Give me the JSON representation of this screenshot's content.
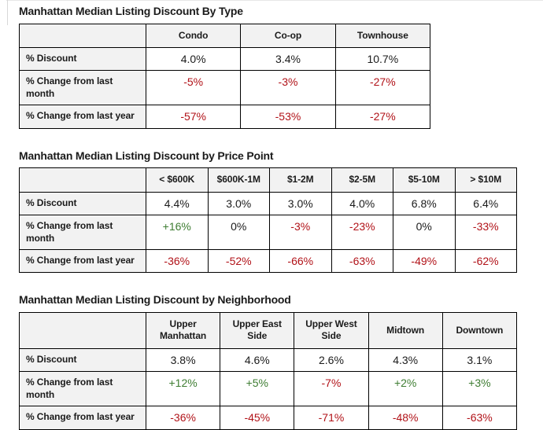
{
  "colors": {
    "negative_value": "#b11218",
    "positive_value": "#3e7d32",
    "neutral_value": "#1b1b1b",
    "header_cell_bg": "#f2f2f2",
    "table_border": "#000000",
    "page_bg": "#ffffff"
  },
  "chart_data": [
    {
      "type": "table",
      "title": "Manhattan Median Listing Discount By Type",
      "columns": [
        "Condo",
        "Co-op",
        "Townhouse"
      ],
      "rows": [
        {
          "label": "% Discount",
          "values": [
            {
              "text": "4.0%",
              "tone": "neutral"
            },
            {
              "text": "3.4%",
              "tone": "neutral"
            },
            {
              "text": "10.7%",
              "tone": "neutral"
            }
          ]
        },
        {
          "label": "% Change from last month",
          "values": [
            {
              "text": "-5%",
              "tone": "negative"
            },
            {
              "text": "-3%",
              "tone": "negative"
            },
            {
              "text": "-27%",
              "tone": "negative"
            }
          ]
        },
        {
          "label": "% Change from last year",
          "values": [
            {
              "text": "-57%",
              "tone": "negative"
            },
            {
              "text": "-53%",
              "tone": "negative"
            },
            {
              "text": "-27%",
              "tone": "negative"
            }
          ]
        }
      ]
    },
    {
      "type": "table",
      "title": "Manhattan Median Listing Discount by Price Point",
      "columns": [
        "< $600K",
        "$600K-1M",
        "$1-2M",
        "$2-5M",
        "$5-10M",
        "> $10M"
      ],
      "rows": [
        {
          "label": "% Discount",
          "values": [
            {
              "text": "4.4%",
              "tone": "neutral"
            },
            {
              "text": "3.0%",
              "tone": "neutral"
            },
            {
              "text": "3.0%",
              "tone": "neutral"
            },
            {
              "text": "4.0%",
              "tone": "neutral"
            },
            {
              "text": "6.8%",
              "tone": "neutral"
            },
            {
              "text": "6.4%",
              "tone": "neutral"
            }
          ]
        },
        {
          "label": "% Change from last month",
          "values": [
            {
              "text": "+16%",
              "tone": "positive"
            },
            {
              "text": "0%",
              "tone": "neutral"
            },
            {
              "text": "-3%",
              "tone": "negative"
            },
            {
              "text": "-23%",
              "tone": "negative"
            },
            {
              "text": "0%",
              "tone": "neutral"
            },
            {
              "text": "-33%",
              "tone": "negative"
            }
          ]
        },
        {
          "label": "% Change from last year",
          "values": [
            {
              "text": "-36%",
              "tone": "negative"
            },
            {
              "text": "-52%",
              "tone": "negative"
            },
            {
              "text": "-66%",
              "tone": "negative"
            },
            {
              "text": "-63%",
              "tone": "negative"
            },
            {
              "text": "-49%",
              "tone": "negative"
            },
            {
              "text": "-62%",
              "tone": "negative"
            }
          ]
        }
      ]
    },
    {
      "type": "table",
      "title": "Manhattan Median Listing Discount by Neighborhood",
      "columns": [
        "Upper Manhattan",
        "Upper East Side",
        "Upper West Side",
        "Midtown",
        "Downtown"
      ],
      "rows": [
        {
          "label": "% Discount",
          "values": [
            {
              "text": "3.8%",
              "tone": "neutral"
            },
            {
              "text": "4.6%",
              "tone": "neutral"
            },
            {
              "text": "2.6%",
              "tone": "neutral"
            },
            {
              "text": "4.3%",
              "tone": "neutral"
            },
            {
              "text": "3.1%",
              "tone": "neutral"
            }
          ]
        },
        {
          "label": "% Change from last month",
          "values": [
            {
              "text": "+12%",
              "tone": "positive"
            },
            {
              "text": "+5%",
              "tone": "positive"
            },
            {
              "text": "-7%",
              "tone": "negative"
            },
            {
              "text": "+2%",
              "tone": "positive"
            },
            {
              "text": "+3%",
              "tone": "positive"
            }
          ]
        },
        {
          "label": "% Change from last year",
          "values": [
            {
              "text": "-36%",
              "tone": "negative"
            },
            {
              "text": "-45%",
              "tone": "negative"
            },
            {
              "text": "-71%",
              "tone": "negative"
            },
            {
              "text": "-48%",
              "tone": "negative"
            },
            {
              "text": "-63%",
              "tone": "negative"
            }
          ]
        }
      ]
    }
  ]
}
